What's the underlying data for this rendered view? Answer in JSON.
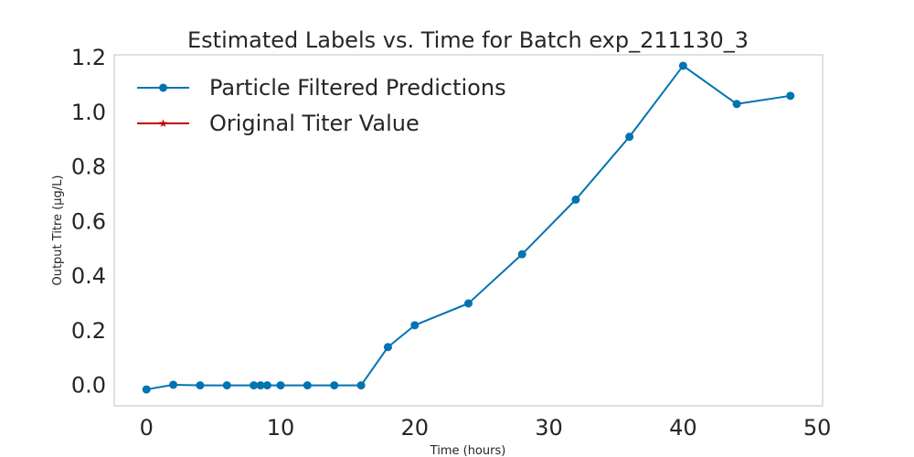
{
  "chart_data": {
    "type": "line",
    "title": "Estimated Labels vs. Time for Batch exp_211130_3",
    "xlabel": "Time (hours)",
    "ylabel": "Output Titre (µg/L)",
    "xlim": [
      -2.4,
      50.4
    ],
    "ylim": [
      -0.075,
      1.21
    ],
    "x_ticks": [
      0,
      10,
      20,
      30,
      40,
      50
    ],
    "x_tick_labels": [
      "0",
      "10",
      "20",
      "30",
      "40",
      "50"
    ],
    "y_ticks": [
      0.0,
      0.2,
      0.4,
      0.6,
      0.8,
      1.0,
      1.2
    ],
    "y_tick_labels": [
      "0.0",
      "0.2",
      "0.4",
      "0.6",
      "0.8",
      "1.0",
      "1.2"
    ],
    "grid": false,
    "legend_position": "top-left",
    "series": [
      {
        "name": "Particle Filtered Predictions",
        "color": "#0173b2",
        "marker": "circle",
        "x": [
          0,
          2,
          4,
          6,
          8,
          8.5,
          9,
          10,
          12,
          14,
          16,
          18,
          20,
          24,
          28,
          32,
          36,
          40,
          44,
          48
        ],
        "y": [
          -0.015,
          0.002,
          0.0,
          0.0,
          0.0,
          0.0,
          0.0,
          0.0,
          0.0,
          0.0,
          0.0,
          0.14,
          0.22,
          0.3,
          0.48,
          0.68,
          0.91,
          1.17,
          1.03,
          1.06
        ]
      },
      {
        "name": "Original Titer Value",
        "color": "#c00000",
        "marker": "star",
        "x": [],
        "y": []
      }
    ]
  }
}
